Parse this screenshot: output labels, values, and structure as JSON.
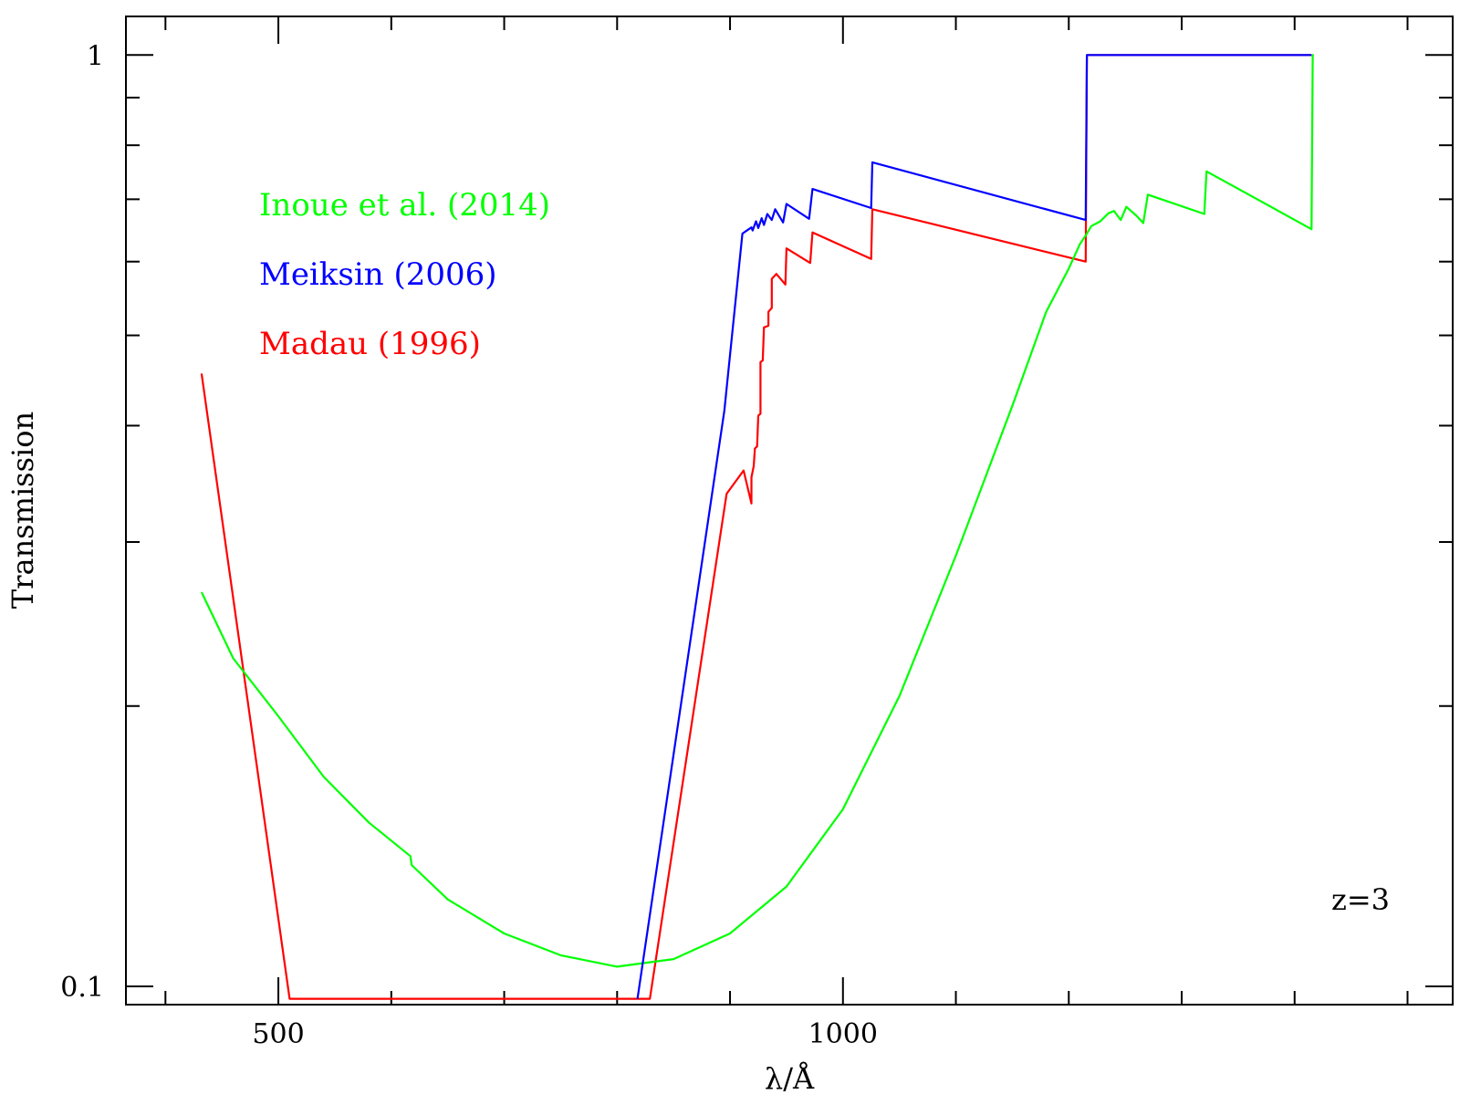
{
  "chart_data": {
    "type": "line",
    "xlabel": "λ/Å",
    "ylabel": "Transmission",
    "xlim": [
      365,
      1540
    ],
    "ylim": [
      0.0956,
      1.1
    ],
    "yscale": "log",
    "grid": false,
    "legend_position": "upper-left",
    "annotation": "z=3",
    "x_major_ticks": [
      {
        "value": 500,
        "label": "500"
      },
      {
        "value": 1000,
        "label": "1000"
      }
    ],
    "x_minor_ticks": [
      400,
      600,
      700,
      800,
      900,
      1100,
      1200,
      1300,
      1400,
      1500
    ],
    "y_major_ticks": [
      {
        "value": 0.1,
        "label": "0.1"
      },
      {
        "value": 1,
        "label": "1"
      }
    ],
    "y_minor_ticks": [
      0.2,
      0.3,
      0.4,
      0.5,
      0.6,
      0.7,
      0.8,
      0.9
    ],
    "series": [
      {
        "name": "Madau (1996)",
        "color": "#ff0000",
        "points": [
          [
            432,
            0.455
          ],
          [
            510,
            0.097
          ],
          [
            829,
            0.097
          ],
          [
            897,
            0.338
          ],
          [
            912,
            0.358
          ],
          [
            919,
            0.33
          ],
          [
            919,
            0.352
          ],
          [
            921,
            0.362
          ],
          [
            922,
            0.378
          ],
          [
            924,
            0.38
          ],
          [
            925,
            0.41
          ],
          [
            927,
            0.412
          ],
          [
            927,
            0.468
          ],
          [
            929,
            0.47
          ],
          [
            930,
            0.51
          ],
          [
            934,
            0.512
          ],
          [
            934,
            0.53
          ],
          [
            937,
            0.535
          ],
          [
            937,
            0.575
          ],
          [
            941,
            0.582
          ],
          [
            949,
            0.567
          ],
          [
            950,
            0.62
          ],
          [
            971,
            0.598
          ],
          [
            973,
            0.645
          ],
          [
            1025,
            0.604
          ],
          [
            1026,
            0.683
          ],
          [
            1215,
            0.6
          ],
          [
            1216,
            1.0
          ],
          [
            1415,
            1.0
          ]
        ]
      },
      {
        "name": "Meiksin (2006)",
        "color": "#0000ff",
        "points": [
          [
            818,
            0.097
          ],
          [
            895,
            0.415
          ],
          [
            911,
            0.643
          ],
          [
            919,
            0.653
          ],
          [
            920,
            0.648
          ],
          [
            923,
            0.663
          ],
          [
            925,
            0.652
          ],
          [
            928,
            0.668
          ],
          [
            930,
            0.657
          ],
          [
            933,
            0.675
          ],
          [
            937,
            0.665
          ],
          [
            940,
            0.683
          ],
          [
            947,
            0.661
          ],
          [
            950,
            0.692
          ],
          [
            970,
            0.667
          ],
          [
            973,
            0.718
          ],
          [
            1025,
            0.685
          ],
          [
            1026,
            0.767
          ],
          [
            1215,
            0.665
          ],
          [
            1216,
            1.0
          ],
          [
            1415,
            1.0
          ]
        ]
      },
      {
        "name": "Inoue et al. (2014)",
        "color": "#00ff00",
        "points": [
          [
            432,
            0.265
          ],
          [
            460,
            0.225
          ],
          [
            500,
            0.195
          ],
          [
            540,
            0.168
          ],
          [
            580,
            0.15
          ],
          [
            617,
            0.138
          ],
          [
            618,
            0.135
          ],
          [
            650,
            0.124
          ],
          [
            700,
            0.114
          ],
          [
            750,
            0.108
          ],
          [
            800,
            0.105
          ],
          [
            850,
            0.107
          ],
          [
            900,
            0.114
          ],
          [
            950,
            0.128
          ],
          [
            1000,
            0.155
          ],
          [
            1050,
            0.205
          ],
          [
            1100,
            0.29
          ],
          [
            1150,
            0.42
          ],
          [
            1180,
            0.53
          ],
          [
            1200,
            0.59
          ],
          [
            1210,
            0.627
          ],
          [
            1215,
            0.64
          ],
          [
            1220,
            0.655
          ],
          [
            1228,
            0.663
          ],
          [
            1235,
            0.676
          ],
          [
            1240,
            0.68
          ],
          [
            1246,
            0.665
          ],
          [
            1251,
            0.687
          ],
          [
            1260,
            0.672
          ],
          [
            1266,
            0.66
          ],
          [
            1270,
            0.708
          ],
          [
            1320,
            0.675
          ],
          [
            1322,
            0.75
          ],
          [
            1415,
            0.65
          ],
          [
            1416,
            1.0
          ],
          [
            1417,
            1.0
          ]
        ]
      }
    ]
  }
}
